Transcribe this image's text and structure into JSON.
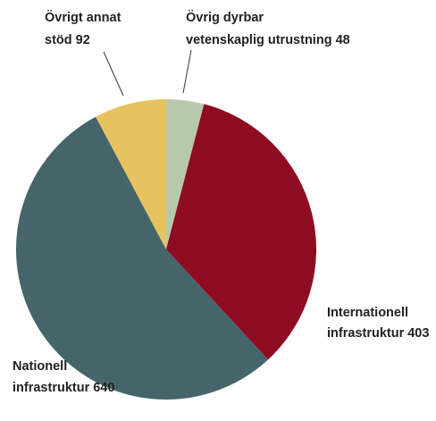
{
  "chart_data": {
    "type": "pie",
    "title": "",
    "slices": [
      {
        "name_lines": [
          "Övrig dyrbar",
          "vetenskaplig utrustning 48"
        ],
        "value": 48,
        "color": "#b7c9ad"
      },
      {
        "name_lines": [
          "Internationell",
          "infrastruktur 403"
        ],
        "value": 403,
        "color": "#8e0b22"
      },
      {
        "name_lines": [
          "Nationell",
          "infrastruktur 640"
        ],
        "value": 640,
        "color": "#45656b"
      },
      {
        "name_lines": [
          "Övrigt annat",
          "stöd 92"
        ],
        "value": 92,
        "color": "#e7c35f"
      }
    ],
    "start": "12 o'clock",
    "direction": "clockwise",
    "legend": "none"
  }
}
